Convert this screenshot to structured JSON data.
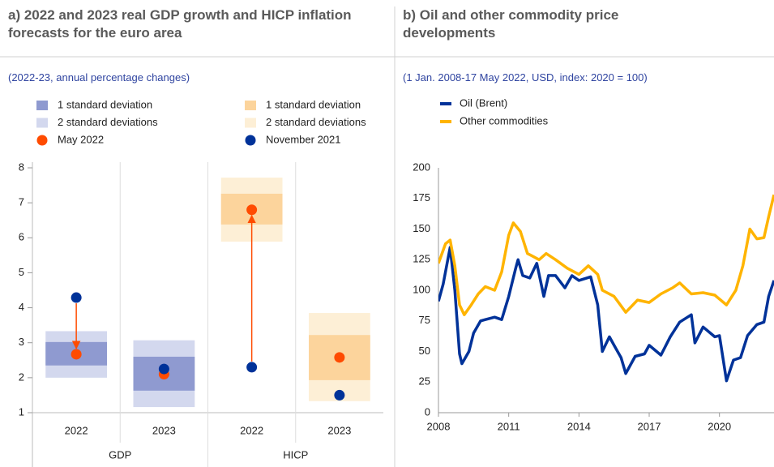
{
  "chart_data": [
    {
      "type": "range",
      "title": "a) 2022 and 2023 real GDP growth and HICP inflation forecasts for the euro area",
      "subtitle": "(2022-23, annual percentage changes)",
      "categories": [
        "2022",
        "2023",
        "2022",
        "2023"
      ],
      "groups": [
        "GDP",
        "HICP"
      ],
      "ylim": [
        1,
        8
      ],
      "yticks": [
        1,
        2,
        3,
        4,
        5,
        6,
        7,
        8
      ],
      "series": [
        {
          "name": "1 standard deviation",
          "kind": "band",
          "width": 1,
          "color": "#8f9ad0",
          "low": [
            2.35,
            1.63,
            null,
            null
          ],
          "high": [
            3.02,
            2.6,
            null,
            null
          ]
        },
        {
          "name": "1 standard deviation",
          "kind": "band",
          "width": 1,
          "color": "#fcd49c",
          "low": [
            null,
            null,
            6.38,
            1.93
          ],
          "high": [
            null,
            null,
            7.26,
            3.22
          ]
        },
        {
          "name": "2 standard deviations",
          "kind": "band",
          "width": 2,
          "color": "#d3d8ee",
          "low": [
            2.0,
            1.16,
            null,
            null
          ],
          "high": [
            3.33,
            3.07,
            null,
            null
          ]
        },
        {
          "name": "2 standard deviations",
          "kind": "band",
          "width": 2,
          "color": "#fdefd6",
          "low": [
            null,
            null,
            5.89,
            1.33
          ],
          "high": [
            null,
            null,
            7.72,
            3.85
          ]
        },
        {
          "name": "May 2022",
          "kind": "point",
          "color": "#ff4b00",
          "values": [
            2.67,
            2.1,
            6.8,
            2.58
          ]
        },
        {
          "name": "November 2021",
          "kind": "point",
          "color": "#003299",
          "values": [
            4.29,
            2.25,
            2.3,
            1.5
          ]
        }
      ]
    },
    {
      "type": "line",
      "title": "b) Oil and other commodity price developments",
      "subtitle": "(1 Jan. 2008-17 May 2022, USD, index: 2020 = 100)",
      "xlim": [
        2008,
        2022.33
      ],
      "xticks": [
        2008,
        2011,
        2014,
        2017,
        2020
      ],
      "ylim": [
        0,
        200
      ],
      "yticks": [
        0,
        25,
        50,
        75,
        100,
        125,
        150,
        175,
        200
      ],
      "series": [
        {
          "name": "Oil (Brent)",
          "color": "#003299",
          "x": [
            2008.0,
            2008.2,
            2008.5,
            2008.7,
            2008.9,
            2009.0,
            2009.3,
            2009.5,
            2009.8,
            2010.0,
            2010.4,
            2010.7,
            2011.0,
            2011.3,
            2011.4,
            2011.6,
            2011.9,
            2012.2,
            2012.5,
            2012.7,
            2013.0,
            2013.4,
            2013.7,
            2014.0,
            2014.5,
            2014.8,
            2015.0,
            2015.3,
            2015.5,
            2015.8,
            2016.0,
            2016.4,
            2016.8,
            2017.0,
            2017.5,
            2017.9,
            2018.3,
            2018.8,
            2018.95,
            2019.3,
            2019.8,
            2020.0,
            2020.3,
            2020.6,
            2020.9,
            2021.2,
            2021.6,
            2021.9,
            2022.1,
            2022.33
          ],
          "values": [
            91,
            105,
            135,
            100,
            48,
            40,
            50,
            65,
            75,
            76,
            78,
            76,
            95,
            118,
            125,
            112,
            110,
            122,
            95,
            112,
            112,
            102,
            112,
            108,
            111,
            88,
            50,
            62,
            55,
            45,
            32,
            46,
            48,
            55,
            47,
            62,
            74,
            80,
            57,
            70,
            62,
            63,
            26,
            43,
            45,
            63,
            72,
            74,
            95,
            108
          ]
        },
        {
          "name": "Other commodities",
          "color": "#ffb400",
          "x": [
            2008.0,
            2008.3,
            2008.5,
            2008.7,
            2008.9,
            2009.1,
            2009.4,
            2009.7,
            2010.0,
            2010.4,
            2010.7,
            2011.0,
            2011.2,
            2011.5,
            2011.8,
            2012.0,
            2012.3,
            2012.6,
            2013.0,
            2013.5,
            2014.0,
            2014.4,
            2014.8,
            2015.0,
            2015.5,
            2016.0,
            2016.5,
            2017.0,
            2017.5,
            2018.0,
            2018.3,
            2018.8,
            2019.3,
            2019.8,
            2020.3,
            2020.7,
            2021.0,
            2021.3,
            2021.6,
            2021.9,
            2022.1,
            2022.33
          ],
          "values": [
            122,
            138,
            141,
            120,
            88,
            80,
            88,
            97,
            103,
            100,
            115,
            145,
            155,
            148,
            130,
            128,
            125,
            130,
            125,
            118,
            113,
            120,
            113,
            100,
            95,
            82,
            92,
            90,
            97,
            102,
            106,
            97,
            98,
            96,
            88,
            100,
            120,
            150,
            142,
            143,
            160,
            178
          ]
        }
      ]
    }
  ]
}
